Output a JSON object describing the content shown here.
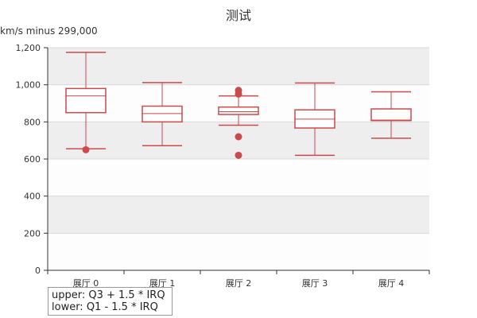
{
  "chart_data": {
    "type": "boxplot",
    "title": "测试",
    "ylabel": "km/s minus 299,000",
    "xlabel": "",
    "ylim": [
      0,
      1200
    ],
    "yticks": [
      0,
      200,
      400,
      600,
      800,
      1000,
      1200
    ],
    "ytick_labels": [
      "0",
      "200",
      "400",
      "600",
      "800",
      "1,000",
      "1,200"
    ],
    "grid": "horizontal alternating bands",
    "colors": {
      "series": "#c94b4b",
      "band": "#eeeeee",
      "axis": "#333333"
    },
    "categories": [
      "展厅 0",
      "展厅 1",
      "展厅 2",
      "展厅 3",
      "展厅 4"
    ],
    "boxes": [
      {
        "low": 655,
        "q1": 850,
        "median": 940,
        "q3": 980,
        "high": 1175
      },
      {
        "low": 672,
        "q1": 800,
        "median": 845,
        "q3": 885,
        "high": 1012
      },
      {
        "low": 782,
        "q1": 840,
        "median": 855,
        "q3": 880,
        "high": 940
      },
      {
        "low": 620,
        "q1": 767,
        "median": 815,
        "q3": 865,
        "high": 1010
      },
      {
        "low": 712,
        "q1": 807,
        "median": 810,
        "q3": 870,
        "high": 962
      }
    ],
    "outliers": [
      {
        "category": 0,
        "value": 650
      },
      {
        "category": 2,
        "value": 970
      },
      {
        "category": 2,
        "value": 950
      },
      {
        "category": 2,
        "value": 720
      },
      {
        "category": 2,
        "value": 620
      }
    ]
  },
  "legend": {
    "upper": "upper: Q3 + 1.5 * IRQ",
    "lower": "lower: Q1 - 1.5 * IRQ"
  }
}
